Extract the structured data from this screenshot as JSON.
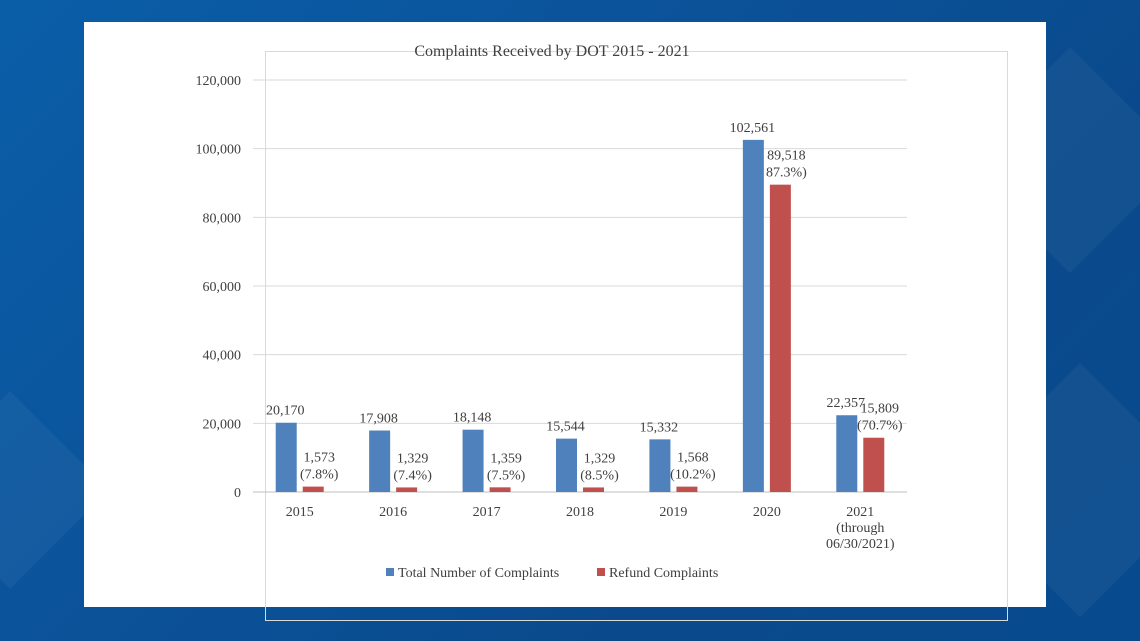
{
  "chart_data": {
    "type": "bar",
    "title": "Complaints Received by DOT 2015 - 2021",
    "xlabel": "",
    "ylabel": "",
    "ylim": [
      0,
      120000
    ],
    "yticks": [
      "0",
      "20,000",
      "40,000",
      "60,000",
      "80,000",
      "100,000",
      "120,000"
    ],
    "ytick_values": [
      0,
      20000,
      40000,
      60000,
      80000,
      100000,
      120000
    ],
    "categories": [
      [
        "2015"
      ],
      [
        "2016"
      ],
      [
        "2017"
      ],
      [
        "2018"
      ],
      [
        "2019"
      ],
      [
        "2020"
      ],
      [
        "2021",
        "(through",
        "06/30/2021)"
      ]
    ],
    "series": [
      {
        "name": "Total Number of Complaints",
        "color": "#4f81bd",
        "values": [
          20170,
          17908,
          18148,
          15544,
          15332,
          102561,
          22357
        ],
        "labels": [
          [
            "20,170"
          ],
          [
            "17,908"
          ],
          [
            "18,148"
          ],
          [
            "15,544"
          ],
          [
            "15,332"
          ],
          [
            "102,561"
          ],
          [
            "22,357"
          ]
        ]
      },
      {
        "name": "Refund Complaints",
        "color": "#c0504d",
        "values": [
          1573,
          1329,
          1359,
          1329,
          1568,
          89518,
          15809
        ],
        "labels": [
          [
            "1,573",
            "(7.8%)"
          ],
          [
            "1,329",
            "(7.4%)"
          ],
          [
            "1,359",
            "(7.5%)"
          ],
          [
            "1,329",
            "(8.5%)"
          ],
          [
            "1,568",
            "(10.2%)"
          ],
          [
            "89,518",
            "87.3%)"
          ],
          [
            "15,809",
            "(70.7%)"
          ]
        ]
      }
    ],
    "grid": true,
    "legend": "bottom"
  }
}
